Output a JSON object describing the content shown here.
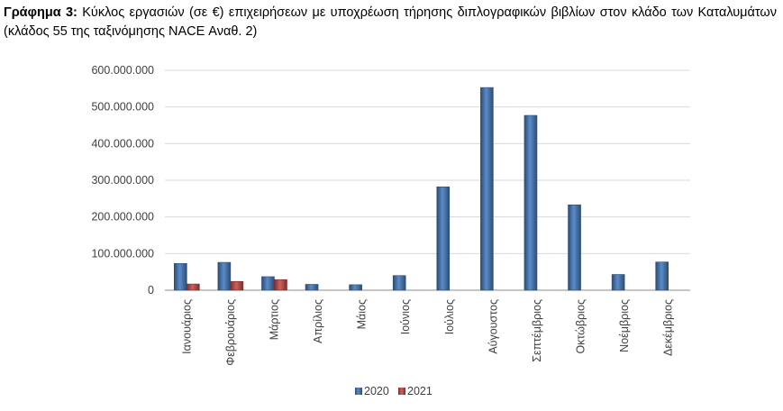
{
  "caption": {
    "label": "Γράφημα 3:",
    "text": "Κύκλος εργασιών (σε €) επιχειρήσεων με υποχρέωση τήρησης διπλογραφικών βιβλίων στον κλάδο των Καταλυμάτων (κλάδος 55 της ταξινόμησης NACE Αναθ. 2)"
  },
  "chart_data": {
    "type": "bar",
    "title": "",
    "xlabel": "",
    "ylabel": "",
    "categories": [
      "Ιανουάριος",
      "Φεβρουάριος",
      "Μάρτιος",
      "Απρίλιος",
      "Μάιος",
      "Ιούνιος",
      "Ιούλιος",
      "Αύγουστος",
      "Σεπτέμβριος",
      "Οκτώβριος",
      "Νοέμβριος",
      "Δεκέμβριος"
    ],
    "series": [
      {
        "name": "2020",
        "color": "#4F81BD",
        "values": [
          73000000,
          76000000,
          37000000,
          16000000,
          15000000,
          40000000,
          282000000,
          553000000,
          477000000,
          233000000,
          43000000,
          77000000
        ]
      },
      {
        "name": "2021",
        "color": "#C0504D",
        "values": [
          17000000,
          24000000,
          29000000,
          null,
          null,
          null,
          null,
          null,
          null,
          null,
          null,
          null
        ]
      }
    ],
    "ylim": [
      0,
      600000000
    ],
    "yticks": [
      0,
      100000000,
      200000000,
      300000000,
      400000000,
      500000000,
      600000000
    ],
    "ytick_labels": [
      "0",
      "100.000.000",
      "200.000.000",
      "300.000.000",
      "400.000.000",
      "500.000.000",
      "600.000.000"
    ],
    "grid": true,
    "legend_position": "bottom"
  }
}
